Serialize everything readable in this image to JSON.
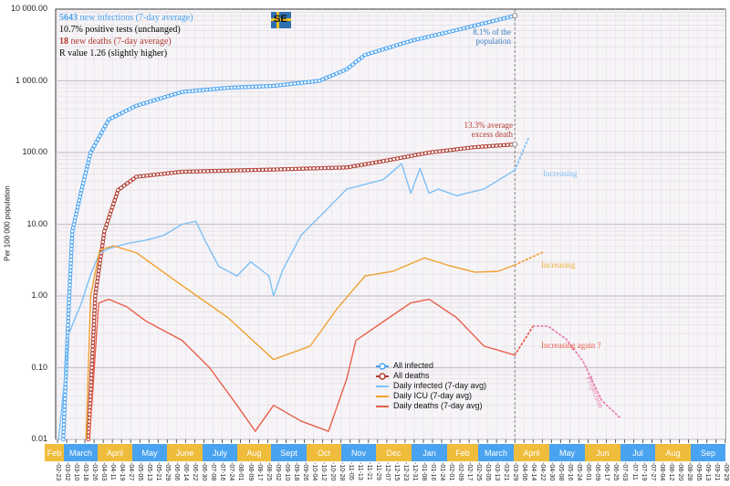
{
  "chart_data": {
    "type": "line",
    "title": "",
    "ylabel": "Per 100 000 population",
    "yscale": "log",
    "ylim": [
      0.01,
      10000
    ],
    "y_tick_labels": [
      "10 000.00",
      "1 000.00",
      "100.00",
      "10.00",
      "1.00",
      "0.10",
      "0.01"
    ],
    "xlim": [
      "2020-02-23",
      "2021-09-29"
    ],
    "grid": true,
    "legend_position": "bottom-center",
    "x_tick_labels": [
      "02-23",
      "03-02",
      "03-10",
      "03-18",
      "03-26",
      "04-03",
      "04-11",
      "04-19",
      "04-27",
      "05-05",
      "05-13",
      "05-21",
      "05-29",
      "06-06",
      "06-14",
      "06-22",
      "06-30",
      "07-08",
      "07-16",
      "07-24",
      "08-01",
      "08-09",
      "08-17",
      "08-25",
      "09-02",
      "09-10",
      "09-18",
      "09-26",
      "10-04",
      "10-12",
      "10-20",
      "10-28",
      "11-05",
      "11-13",
      "11-21",
      "11-29",
      "12-07",
      "12-15",
      "12-23",
      "12-31",
      "01-08",
      "01-16",
      "01-24",
      "02-01",
      "02-09",
      "02-17",
      "02-25",
      "03-05",
      "03-13",
      "03-21",
      "03-29",
      "04-06",
      "04-14",
      "04-22",
      "04-30",
      "05-08",
      "05-16",
      "05-24",
      "06-01",
      "06-09",
      "06-17",
      "06-25",
      "07-03",
      "07-11",
      "07-19",
      "07-27",
      "08-04",
      "08-12",
      "08-20",
      "08-28",
      "09-05",
      "09-13",
      "09-21",
      "09-29"
    ],
    "months": [
      {
        "label": "Feb",
        "color": "#f0bc3c"
      },
      {
        "label": "March",
        "color": "#4aa3f0"
      },
      {
        "label": "April",
        "color": "#f0bc3c"
      },
      {
        "label": "May",
        "color": "#4aa3f0"
      },
      {
        "label": "June",
        "color": "#f0bc3c"
      },
      {
        "label": "July",
        "color": "#4aa3f0"
      },
      {
        "label": "Aug",
        "color": "#f0bc3c"
      },
      {
        "label": "Sept",
        "color": "#4aa3f0"
      },
      {
        "label": "Oct",
        "color": "#f0bc3c"
      },
      {
        "label": "Nov",
        "color": "#4aa3f0"
      },
      {
        "label": "Dec",
        "color": "#f0bc3c"
      },
      {
        "label": "Jan",
        "color": "#4aa3f0"
      },
      {
        "label": "Feb",
        "color": "#f0bc3c"
      },
      {
        "label": "March",
        "color": "#4aa3f0"
      },
      {
        "label": "April",
        "color": "#f0bc3c"
      },
      {
        "label": "May",
        "color": "#4aa3f0"
      },
      {
        "label": "Jun",
        "color": "#f0bc3c"
      },
      {
        "label": "Jul",
        "color": "#4aa3f0"
      },
      {
        "label": "Aug",
        "color": "#f0bc3c"
      },
      {
        "label": "Sep",
        "color": "#4aa3f0"
      }
    ],
    "current_date_marker": "2021-03-29",
    "series": [
      {
        "name": "All infected",
        "color": "#4aa3f0",
        "style": "line-circles",
        "points": [
          [
            "2020-02-28",
            0.01
          ],
          [
            "2020-03-04",
            0.8
          ],
          [
            "2020-03-07",
            8
          ],
          [
            "2020-03-15",
            30
          ],
          [
            "2020-03-23",
            100
          ],
          [
            "2020-04-08",
            290
          ],
          [
            "2020-05-02",
            450
          ],
          [
            "2020-06-11",
            700
          ],
          [
            "2020-07-21",
            800
          ],
          [
            "2020-08-30",
            850
          ],
          [
            "2020-10-09",
            1000
          ],
          [
            "2020-11-02",
            1450
          ],
          [
            "2020-11-18",
            2300
          ],
          [
            "2020-12-28",
            3600
          ],
          [
            "2021-02-06",
            5100
          ],
          [
            "2021-03-29",
            8100
          ]
        ]
      },
      {
        "name": "All deaths",
        "color": "#b03a2e",
        "style": "line-circles",
        "points": [
          [
            "2020-03-21",
            0.01
          ],
          [
            "2020-03-24",
            0.1
          ],
          [
            "2020-03-27",
            1
          ],
          [
            "2020-04-04",
            8
          ],
          [
            "2020-04-16",
            30
          ],
          [
            "2020-05-02",
            46
          ],
          [
            "2020-06-11",
            54
          ],
          [
            "2020-08-30",
            58
          ],
          [
            "2020-11-02",
            62
          ],
          [
            "2020-12-04",
            76
          ],
          [
            "2021-01-13",
            100
          ],
          [
            "2021-02-22",
            119
          ],
          [
            "2021-03-29",
            130
          ]
        ]
      },
      {
        "name": "Daily infected (7-day avg)",
        "color": "#7cc0f5",
        "style": "line",
        "points": [
          [
            "2020-02-24",
            0.01
          ],
          [
            "2020-03-04",
            0.3
          ],
          [
            "2020-03-15",
            0.8
          ],
          [
            "2020-03-23",
            2
          ],
          [
            "2020-03-31",
            4
          ],
          [
            "2020-04-08",
            4.6
          ],
          [
            "2020-04-24",
            5.4
          ],
          [
            "2020-05-10",
            6
          ],
          [
            "2020-05-26",
            7
          ],
          [
            "2020-06-11",
            10
          ],
          [
            "2020-06-23",
            11
          ],
          [
            "2020-07-01",
            6
          ],
          [
            "2020-07-13",
            2.6
          ],
          [
            "2020-07-29",
            1.9
          ],
          [
            "2020-08-10",
            3
          ],
          [
            "2020-08-26",
            1.9
          ],
          [
            "2020-08-30",
            1
          ],
          [
            "2020-09-07",
            2.3
          ],
          [
            "2020-09-23",
            7
          ],
          [
            "2020-10-17",
            17
          ],
          [
            "2020-11-02",
            31
          ],
          [
            "2020-11-18",
            36
          ],
          [
            "2020-12-04",
            42
          ],
          [
            "2020-12-20",
            70
          ],
          [
            "2020-12-28",
            27
          ],
          [
            "2021-01-05",
            60
          ],
          [
            "2021-01-13",
            27
          ],
          [
            "2021-01-21",
            31
          ],
          [
            "2021-02-06",
            25
          ],
          [
            "2021-03-02",
            31
          ],
          [
            "2021-03-29",
            57
          ]
        ]
      },
      {
        "name": "Daily ICU (7-day avg)",
        "color": "#f0a030",
        "style": "line",
        "points": [
          [
            "2020-03-19",
            0.01
          ],
          [
            "2020-03-23",
            1
          ],
          [
            "2020-03-31",
            4.4
          ],
          [
            "2020-04-12",
            5
          ],
          [
            "2020-05-02",
            4
          ],
          [
            "2020-06-11",
            1.4
          ],
          [
            "2020-07-21",
            0.5
          ],
          [
            "2020-08-30",
            0.13
          ],
          [
            "2020-10-01",
            0.2
          ],
          [
            "2020-10-25",
            0.68
          ],
          [
            "2020-11-18",
            1.9
          ],
          [
            "2020-12-12",
            2.2
          ],
          [
            "2021-01-09",
            3.4
          ],
          [
            "2021-01-29",
            2.7
          ],
          [
            "2021-02-22",
            2.15
          ],
          [
            "2021-03-14",
            2.2
          ],
          [
            "2021-03-29",
            2.7
          ]
        ]
      },
      {
        "name": "Daily deaths (7-day avg)",
        "color": "#e8604a",
        "style": "line",
        "points": [
          [
            "2020-03-22",
            0.01
          ],
          [
            "2020-03-30",
            0.8
          ],
          [
            "2020-04-08",
            0.9
          ],
          [
            "2020-04-24",
            0.7
          ],
          [
            "2020-05-10",
            0.45
          ],
          [
            "2020-06-11",
            0.24
          ],
          [
            "2020-07-05",
            0.1
          ],
          [
            "2020-07-29",
            0.03
          ],
          [
            "2020-08-14",
            0.013
          ],
          [
            "2020-08-30",
            0.03
          ],
          [
            "2020-09-23",
            0.018
          ],
          [
            "2020-10-17",
            0.013
          ],
          [
            "2020-11-02",
            0.07
          ],
          [
            "2020-11-10",
            0.24
          ],
          [
            "2020-12-04",
            0.44
          ],
          [
            "2020-12-28",
            0.8
          ],
          [
            "2021-01-13",
            0.9
          ],
          [
            "2021-02-06",
            0.5
          ],
          [
            "2021-03-02",
            0.2
          ],
          [
            "2021-03-29",
            0.15
          ]
        ]
      }
    ],
    "projections": [
      {
        "color": "#7cc0f5",
        "points": [
          [
            "2021-03-29",
            57
          ],
          [
            "2021-04-10",
            160
          ]
        ]
      },
      {
        "color": "#f0a030",
        "points": [
          [
            "2021-03-29",
            2.7
          ],
          [
            "2021-04-24",
            4.2
          ]
        ]
      },
      {
        "color": "#e8604a",
        "points": [
          [
            "2021-03-29",
            0.15
          ],
          [
            "2021-04-14",
            0.38
          ]
        ]
      },
      {
        "color": "#e880b0",
        "points": [
          [
            "2021-04-14",
            0.38
          ],
          [
            "2021-04-27",
            0.38
          ],
          [
            "2021-05-13",
            0.25
          ],
          [
            "2021-05-28",
            0.12
          ],
          [
            "2021-06-13",
            0.035
          ],
          [
            "2021-06-29",
            0.02
          ]
        ]
      }
    ],
    "annotations": {
      "infected_share": [
        "8.1% of the",
        "population"
      ],
      "excess_death": [
        "13.3% average",
        "excess death"
      ],
      "infected_trend": "Increasing",
      "icu_trend": "Increasing",
      "deaths_trend": "Increasing again ?",
      "projection": "Projection"
    }
  },
  "info": {
    "infections_number": "5643",
    "infections_text": " new infections (7-day average)",
    "positive_tests": "10.7% positive tests (unchanged)",
    "deaths_number": "18",
    "deaths_text": " new deaths (7-day average)",
    "r_value": "R value 1.26 (slightly higher)"
  },
  "flag": {
    "label": "SE"
  }
}
